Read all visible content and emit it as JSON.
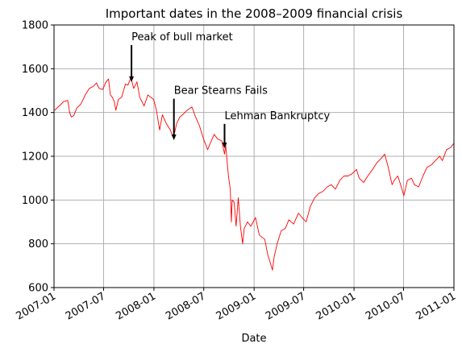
{
  "chart_data": {
    "type": "line",
    "title": "Important dates in the 2008–2009 financial crisis",
    "xlabel": "Date",
    "ylabel": "",
    "xlim": [
      "2007-01-01",
      "2011-01-01"
    ],
    "ylim": [
      600,
      1800
    ],
    "grid": true,
    "x_ticks": [
      "2007-01",
      "2007-07",
      "2008-01",
      "2008-07",
      "2009-01",
      "2009-07",
      "2010-01",
      "2010-07",
      "2011-01"
    ],
    "y_ticks": [
      600,
      800,
      1000,
      1200,
      1400,
      1600,
      1800
    ],
    "series": [
      {
        "color": "#ff0000",
        "x": [
          "2007-01-03",
          "2007-01-20",
          "2007-02-05",
          "2007-02-20",
          "2007-02-27",
          "2007-03-05",
          "2007-03-14",
          "2007-03-25",
          "2007-04-10",
          "2007-04-25",
          "2007-05-10",
          "2007-05-25",
          "2007-06-05",
          "2007-06-15",
          "2007-06-28",
          "2007-07-10",
          "2007-07-19",
          "2007-07-26",
          "2007-08-02",
          "2007-08-09",
          "2007-08-15",
          "2007-08-24",
          "2007-09-05",
          "2007-09-19",
          "2007-09-28",
          "2007-10-09",
          "2007-10-19",
          "2007-10-31",
          "2007-11-10",
          "2007-11-26",
          "2007-12-10",
          "2007-12-20",
          "2007-12-31",
          "2008-01-10",
          "2008-01-22",
          "2008-02-01",
          "2008-02-15",
          "2008-03-01",
          "2008-03-10",
          "2008-03-17",
          "2008-03-24",
          "2008-04-05",
          "2008-04-15",
          "2008-05-01",
          "2008-05-19",
          "2008-06-01",
          "2008-06-15",
          "2008-06-30",
          "2008-07-15",
          "2008-07-25",
          "2008-08-08",
          "2008-08-20",
          "2008-09-05",
          "2008-09-15",
          "2008-09-19",
          "2008-09-29",
          "2008-10-06",
          "2008-10-10",
          "2008-10-13",
          "2008-10-20",
          "2008-10-27",
          "2008-11-04",
          "2008-11-12",
          "2008-11-20",
          "2008-11-26",
          "2008-12-08",
          "2008-12-20",
          "2009-01-06",
          "2009-01-20",
          "2009-02-09",
          "2009-02-20",
          "2009-03-02",
          "2009-03-09",
          "2009-03-15",
          "2009-03-26",
          "2009-04-10",
          "2009-04-25",
          "2009-05-08",
          "2009-05-25",
          "2009-06-12",
          "2009-06-25",
          "2009-07-10",
          "2009-07-25",
          "2009-08-10",
          "2009-08-25",
          "2009-09-10",
          "2009-09-25",
          "2009-10-10",
          "2009-10-25",
          "2009-11-10",
          "2009-11-25",
          "2009-12-10",
          "2009-12-25",
          "2010-01-10",
          "2010-01-20",
          "2010-02-05",
          "2010-02-20",
          "2010-03-10",
          "2010-03-25",
          "2010-04-10",
          "2010-04-23",
          "2010-05-06",
          "2010-05-20",
          "2010-05-28",
          "2010-06-10",
          "2010-06-20",
          "2010-07-02",
          "2010-07-15",
          "2010-07-30",
          "2010-08-10",
          "2010-08-25",
          "2010-09-10",
          "2010-09-25",
          "2010-10-10",
          "2010-10-25",
          "2010-11-10",
          "2010-11-20",
          "2010-12-05",
          "2010-12-20",
          "2010-12-31"
        ],
        "y": [
          1410,
          1430,
          1450,
          1455,
          1400,
          1380,
          1385,
          1420,
          1440,
          1480,
          1510,
          1520,
          1535,
          1510,
          1505,
          1540,
          1553,
          1480,
          1470,
          1450,
          1410,
          1460,
          1470,
          1530,
          1525,
          1560,
          1510,
          1540,
          1470,
          1430,
          1480,
          1470,
          1460,
          1410,
          1320,
          1390,
          1350,
          1320,
          1290,
          1310,
          1350,
          1380,
          1390,
          1410,
          1425,
          1380,
          1340,
          1280,
          1230,
          1260,
          1300,
          1280,
          1270,
          1210,
          1250,
          1110,
          1050,
          900,
          1000,
          990,
          880,
          1010,
          880,
          800,
          870,
          900,
          880,
          920,
          840,
          820,
          750,
          710,
          680,
          740,
          800,
          860,
          870,
          910,
          890,
          940,
          920,
          900,
          970,
          1010,
          1030,
          1040,
          1060,
          1070,
          1050,
          1090,
          1110,
          1110,
          1120,
          1140,
          1100,
          1080,
          1110,
          1140,
          1170,
          1190,
          1210,
          1150,
          1070,
          1090,
          1110,
          1070,
          1020,
          1090,
          1100,
          1070,
          1060,
          1110,
          1150,
          1160,
          1180,
          1200,
          1180,
          1230,
          1240,
          1258
        ]
      }
    ],
    "annotations": [
      {
        "text": "Peak of bull market",
        "x": "2007-10-11",
        "y": 1554.41,
        "text_y": 1730
      },
      {
        "text": "Bear Stearns Fails",
        "x": "2008-03-14",
        "y": 1288.14,
        "text_y": 1485
      },
      {
        "text": "Lehman Bankruptcy",
        "x": "2008-09-15",
        "y": 1251.7,
        "text_y": 1370
      }
    ]
  }
}
